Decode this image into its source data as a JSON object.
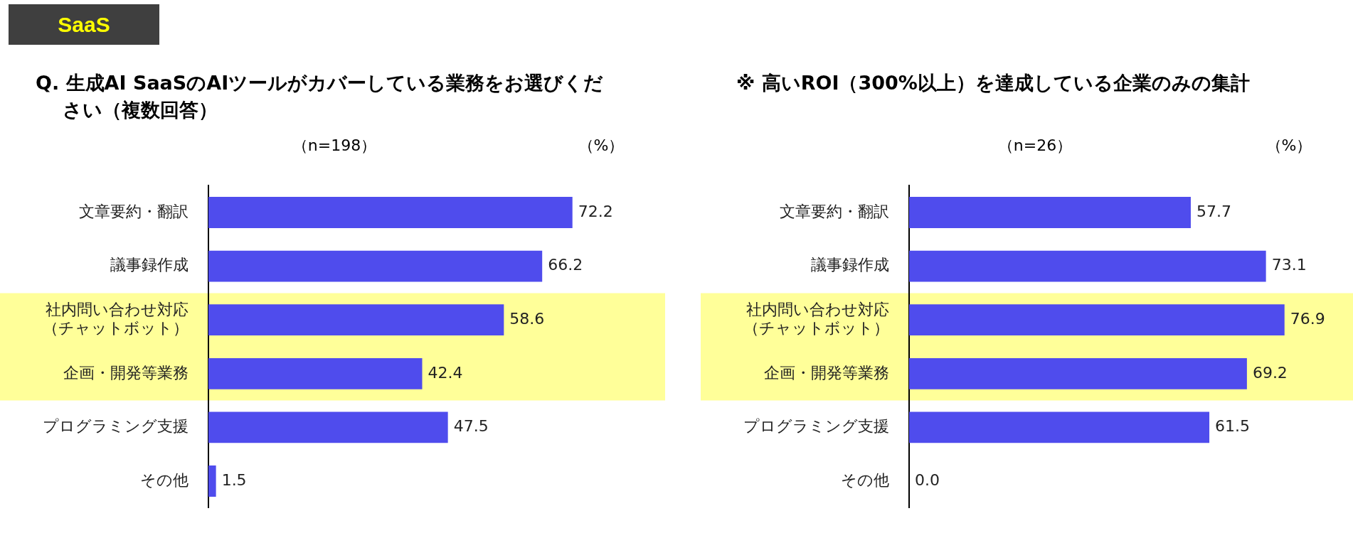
{
  "chart_data": [
    {
      "type": "other",
      "title": "SaaS"
    },
    {
      "type": "bar",
      "orientation": "horizontal",
      "title": "Q. 生成AI SaaSのAIツールがカバーしている業務をお選びください（複数回答）",
      "subtitle": "（n=198）",
      "xlabel": "（%）",
      "categories": [
        "文章要約・翻訳",
        "議事録作成",
        "社内問い合わせ対応（チャットボット）",
        "企画・開発等業務",
        "プログラミング支援",
        "その他"
      ],
      "values": [
        72.2,
        66.2,
        58.6,
        42.4,
        47.5,
        1.5
      ],
      "color": "#4f4ced",
      "value_labels": [
        "72.2",
        "66.2",
        "58.6",
        "42.4",
        "47.5",
        "1.5"
      ],
      "bands": [
        {
          "axis": "y",
          "from": "社内問い合わせ対応（チャットボット）",
          "to": "企画・開発等業務",
          "color": "#ffff99"
        }
      ]
    },
    {
      "type": "bar",
      "orientation": "horizontal",
      "title": "※ 高いROI（300%以上）を達成している企業のみの集計",
      "subtitle": "（n=26）",
      "xlabel": "（%）",
      "categories": [
        "文章要約・翻訳",
        "議事録作成",
        "社内問い合わせ対応（チャットボット）",
        "企画・開発等業務",
        "プログラミング支援",
        "その他"
      ],
      "values": [
        57.7,
        73.1,
        76.9,
        69.2,
        61.5,
        0.0
      ],
      "color": "#4f4ced",
      "value_labels": [
        "57.7",
        "73.1",
        "76.9",
        "69.2",
        "61.5",
        "0.0"
      ],
      "bands": [
        {
          "axis": "y",
          "from": "社内問い合わせ対応（チャットボット）",
          "to": "企画・開発等業務",
          "color": "#ffff99"
        }
      ]
    }
  ]
}
